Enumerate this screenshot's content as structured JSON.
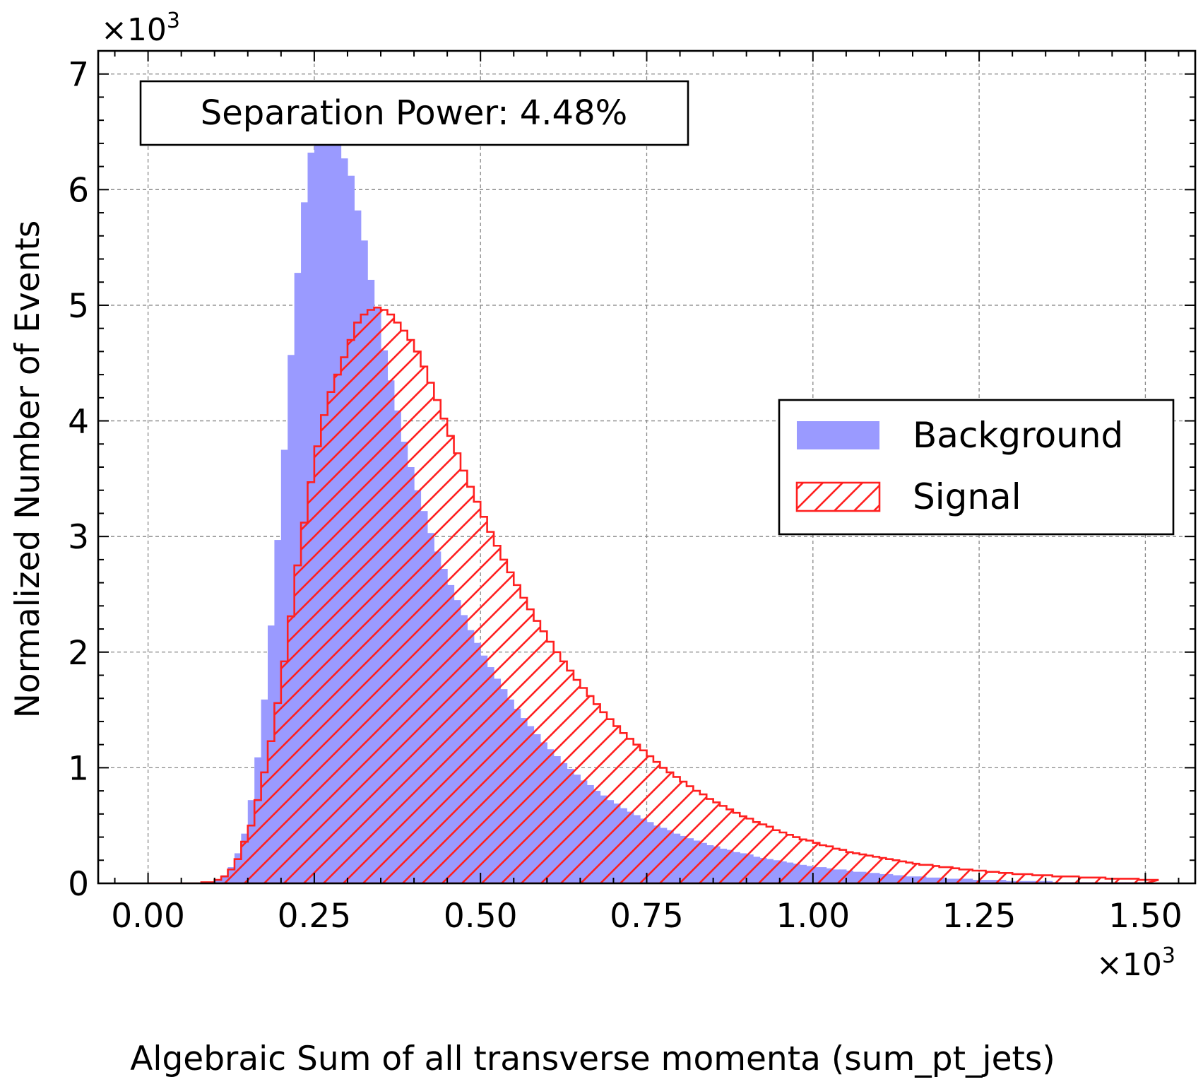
{
  "chart_data": {
    "type": "histogram",
    "title": "",
    "xlabel": "Algebraic Sum of all transverse momenta (sum_pt_jets)",
    "ylabel": "Normalized Number of Events",
    "x_multiplier_label": "×10",
    "x_multiplier_exp": "3",
    "y_multiplier_label": "×10",
    "y_multiplier_exp": "3",
    "xlim": [
      -0.075,
      1.575
    ],
    "ylim": [
      0,
      7.2
    ],
    "x_unit_scale": 1000,
    "y_unit_scale": 1000,
    "x_ticks": [
      0.0,
      0.25,
      0.5,
      0.75,
      1.0,
      1.25,
      1.5
    ],
    "x_tick_labels": [
      "0.00",
      "0.25",
      "0.50",
      "0.75",
      "1.00",
      "1.25",
      "1.50"
    ],
    "y_ticks": [
      0,
      1,
      2,
      3,
      4,
      5,
      6,
      7
    ],
    "y_tick_labels": [
      "0",
      "1",
      "2",
      "3",
      "4",
      "5",
      "6",
      "7"
    ],
    "grid": true,
    "annotation": "Separation Power: 4.48%",
    "legend_position": "center-right",
    "bin_edges": {
      "start": 0.0,
      "end": 1.5,
      "count": 150,
      "width": 0.01
    },
    "series": [
      {
        "name": "Background",
        "style": "filled",
        "color": "#9a9aff",
        "values": [
          0,
          0,
          0,
          0,
          0,
          0,
          0,
          0,
          0,
          0.01,
          0.03,
          0.07,
          0.14,
          0.26,
          0.43,
          0.72,
          1.09,
          1.59,
          2.23,
          2.97,
          3.75,
          4.57,
          5.28,
          5.89,
          6.32,
          6.54,
          6.58,
          6.52,
          6.4,
          6.27,
          6.12,
          5.82,
          5.56,
          5.22,
          4.98,
          4.61,
          4.35,
          4.09,
          3.82,
          3.6,
          3.4,
          3.22,
          3.03,
          2.87,
          2.72,
          2.58,
          2.45,
          2.32,
          2.19,
          2.08,
          1.97,
          1.87,
          1.77,
          1.68,
          1.59,
          1.51,
          1.43,
          1.36,
          1.29,
          1.22,
          1.16,
          1.1,
          1.04,
          0.99,
          0.94,
          0.89,
          0.85,
          0.8,
          0.76,
          0.72,
          0.69,
          0.65,
          0.62,
          0.59,
          0.56,
          0.53,
          0.5,
          0.48,
          0.46,
          0.43,
          0.41,
          0.39,
          0.37,
          0.35,
          0.33,
          0.32,
          0.3,
          0.29,
          0.27,
          0.26,
          0.25,
          0.23,
          0.22,
          0.21,
          0.2,
          0.19,
          0.18,
          0.17,
          0.16,
          0.15,
          0.14,
          0.14,
          0.13,
          0.12,
          0.12,
          0.11,
          0.1,
          0.1,
          0.09,
          0.09,
          0.08,
          0.08,
          0.07,
          0.07,
          0.06,
          0.06,
          0.06,
          0.05,
          0.05,
          0.05,
          0.04,
          0.04,
          0.04,
          0.04,
          0.03,
          0.03,
          0.03,
          0.03,
          0.03,
          0.02,
          0.02,
          0.02,
          0.02,
          0.02,
          0.02,
          0.02,
          0.01,
          0.01,
          0.01,
          0.01,
          0.01,
          0.01,
          0.01,
          0.01,
          0.01,
          0.01,
          0.01,
          0.01,
          0.01,
          0.01
        ]
      },
      {
        "name": "Signal",
        "style": "hatched-step",
        "color": "#ff2020",
        "values": [
          0,
          0,
          0,
          0,
          0,
          0,
          0,
          0,
          0.01,
          0.01,
          0.03,
          0.06,
          0.12,
          0.21,
          0.36,
          0.5,
          0.72,
          0.96,
          1.23,
          1.56,
          1.92,
          2.31,
          2.75,
          3.12,
          3.47,
          3.78,
          4.05,
          4.25,
          4.4,
          4.55,
          4.7,
          4.85,
          4.92,
          4.96,
          4.98,
          4.96,
          4.92,
          4.85,
          4.78,
          4.7,
          4.6,
          4.47,
          4.33,
          4.18,
          4.02,
          3.87,
          3.72,
          3.57,
          3.43,
          3.3,
          3.17,
          3.04,
          2.92,
          2.8,
          2.69,
          2.58,
          2.47,
          2.37,
          2.27,
          2.18,
          2.09,
          2.0,
          1.92,
          1.84,
          1.76,
          1.69,
          1.62,
          1.55,
          1.48,
          1.42,
          1.36,
          1.3,
          1.25,
          1.2,
          1.15,
          1.1,
          1.05,
          1.0,
          0.96,
          0.92,
          0.88,
          0.84,
          0.8,
          0.77,
          0.73,
          0.7,
          0.67,
          0.64,
          0.61,
          0.58,
          0.56,
          0.53,
          0.51,
          0.49,
          0.46,
          0.44,
          0.42,
          0.4,
          0.38,
          0.37,
          0.35,
          0.33,
          0.32,
          0.3,
          0.29,
          0.27,
          0.26,
          0.25,
          0.24,
          0.23,
          0.22,
          0.21,
          0.2,
          0.19,
          0.18,
          0.17,
          0.16,
          0.16,
          0.15,
          0.14,
          0.14,
          0.13,
          0.12,
          0.12,
          0.11,
          0.11,
          0.1,
          0.1,
          0.09,
          0.09,
          0.08,
          0.08,
          0.08,
          0.07,
          0.07,
          0.07,
          0.06,
          0.06,
          0.06,
          0.06,
          0.05,
          0.05,
          0.05,
          0.05,
          0.04,
          0.04,
          0.04,
          0.04,
          0.04,
          0.03,
          0.03,
          0.03
        ]
      }
    ]
  }
}
